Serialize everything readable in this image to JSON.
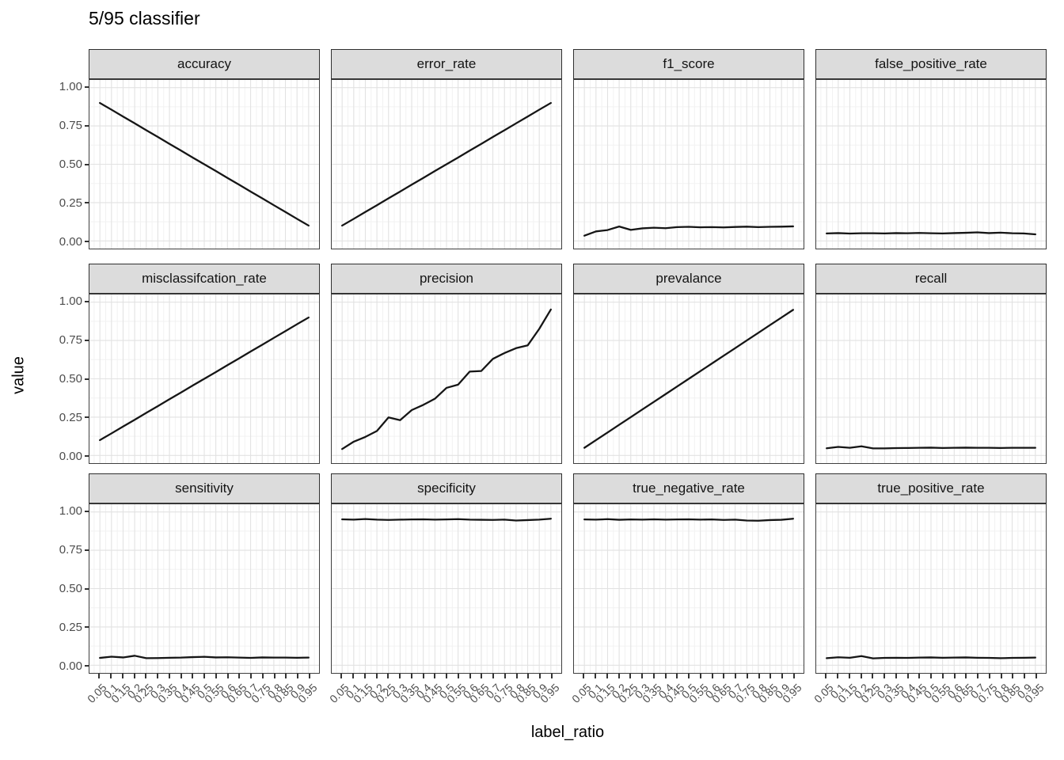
{
  "title": "5/95 classifier",
  "x_axis": {
    "label": "label_ratio",
    "tick_labels": [
      "0.05",
      "0.1",
      "0.15",
      "0.2",
      "0.25",
      "0.3",
      "0.35",
      "0.4",
      "0.45",
      "0.5",
      "0.55",
      "0.6",
      "0.65",
      "0.7",
      "0.75",
      "0.8",
      "0.85",
      "0.9",
      "0.95"
    ]
  },
  "y_axis": {
    "label": "value",
    "tick_labels": [
      "1.00",
      "0.75",
      "0.50",
      "0.25",
      "0.00"
    ],
    "tick_values": [
      1.0,
      0.75,
      0.5,
      0.25,
      0.0
    ]
  },
  "colors": {
    "strip_fill": "#dcdcdc",
    "strip_border": "#2f2f2f",
    "panel_border": "#3f3f3f",
    "grid_major": "#e2e2e2",
    "grid_minor": "#f2f2f2",
    "line": "#151515",
    "tick_mark": "#333333",
    "axis_text": "#4d4d4d"
  },
  "chart_data": {
    "type": "line",
    "title": "5/95 classifier",
    "xlabel": "label_ratio",
    "ylabel": "value",
    "x": [
      0.05,
      0.1,
      0.15,
      0.2,
      0.25,
      0.3,
      0.35,
      0.4,
      0.45,
      0.5,
      0.55,
      0.6,
      0.65,
      0.7,
      0.75,
      0.8,
      0.85,
      0.9,
      0.95
    ],
    "ylim": [
      0,
      1
    ],
    "xlim_expanded": [
      0.005,
      0.995
    ],
    "ylim_expanded": [
      -0.05,
      1.05
    ],
    "y_major_gridlines": [
      0,
      0.25,
      0.5,
      0.75,
      1.0
    ],
    "y_minor_gridlines": [
      0.125,
      0.375,
      0.625,
      0.875
    ],
    "grid": true,
    "legend": "none",
    "facet_layout": {
      "rows": 3,
      "cols": 4
    },
    "facets": [
      {
        "label": "accuracy",
        "values": [
          0.9,
          0.856,
          0.811,
          0.767,
          0.722,
          0.678,
          0.633,
          0.589,
          0.544,
          0.5,
          0.456,
          0.411,
          0.367,
          0.322,
          0.278,
          0.233,
          0.189,
          0.144,
          0.1
        ]
      },
      {
        "label": "error_rate",
        "values": [
          0.1,
          0.144,
          0.189,
          0.233,
          0.278,
          0.322,
          0.367,
          0.411,
          0.456,
          0.5,
          0.544,
          0.589,
          0.633,
          0.678,
          0.722,
          0.767,
          0.811,
          0.856,
          0.9
        ]
      },
      {
        "label": "f1_score",
        "values": [
          0.034,
          0.062,
          0.071,
          0.094,
          0.072,
          0.082,
          0.086,
          0.083,
          0.09,
          0.092,
          0.089,
          0.09,
          0.088,
          0.091,
          0.093,
          0.09,
          0.092,
          0.093,
          0.095
        ]
      },
      {
        "label": "false_positive_rate",
        "values": [
          0.049,
          0.051,
          0.048,
          0.05,
          0.05,
          0.049,
          0.051,
          0.05,
          0.052,
          0.05,
          0.049,
          0.051,
          0.053,
          0.056,
          0.051,
          0.054,
          0.05,
          0.049,
          0.043
        ]
      },
      {
        "label": "misclassifcation_rate",
        "values": [
          0.1,
          0.144,
          0.189,
          0.233,
          0.278,
          0.322,
          0.367,
          0.411,
          0.456,
          0.5,
          0.544,
          0.589,
          0.633,
          0.678,
          0.722,
          0.767,
          0.811,
          0.856,
          0.9
        ]
      },
      {
        "label": "precision",
        "values": [
          0.042,
          0.09,
          0.121,
          0.16,
          0.248,
          0.23,
          0.296,
          0.33,
          0.37,
          0.441,
          0.462,
          0.547,
          0.551,
          0.63,
          0.668,
          0.7,
          0.718,
          0.826,
          0.952
        ]
      },
      {
        "label": "prevalance",
        "values": [
          0.05,
          0.1,
          0.15,
          0.2,
          0.25,
          0.3,
          0.35,
          0.4,
          0.45,
          0.5,
          0.55,
          0.6,
          0.65,
          0.7,
          0.75,
          0.8,
          0.85,
          0.9,
          0.95
        ]
      },
      {
        "label": "recall",
        "values": [
          0.047,
          0.056,
          0.05,
          0.06,
          0.046,
          0.046,
          0.048,
          0.049,
          0.05,
          0.051,
          0.049,
          0.05,
          0.051,
          0.05,
          0.05,
          0.049,
          0.05,
          0.05,
          0.05
        ]
      },
      {
        "label": "sensitivity",
        "values": [
          0.048,
          0.056,
          0.051,
          0.062,
          0.046,
          0.047,
          0.049,
          0.05,
          0.053,
          0.055,
          0.051,
          0.052,
          0.05,
          0.048,
          0.051,
          0.05,
          0.05,
          0.049,
          0.05
        ]
      },
      {
        "label": "specificity",
        "values": [
          0.952,
          0.95,
          0.954,
          0.95,
          0.948,
          0.95,
          0.951,
          0.952,
          0.95,
          0.951,
          0.953,
          0.95,
          0.949,
          0.948,
          0.95,
          0.944,
          0.947,
          0.95,
          0.956
        ]
      },
      {
        "label": "true_negative_rate",
        "values": [
          0.951,
          0.95,
          0.953,
          0.949,
          0.951,
          0.95,
          0.952,
          0.95,
          0.951,
          0.952,
          0.95,
          0.951,
          0.948,
          0.95,
          0.944,
          0.943,
          0.947,
          0.949,
          0.956
        ]
      },
      {
        "label": "true_positive_rate",
        "values": [
          0.046,
          0.052,
          0.049,
          0.06,
          0.045,
          0.048,
          0.049,
          0.048,
          0.05,
          0.051,
          0.049,
          0.05,
          0.051,
          0.049,
          0.048,
          0.046,
          0.048,
          0.049,
          0.05
        ]
      }
    ]
  }
}
